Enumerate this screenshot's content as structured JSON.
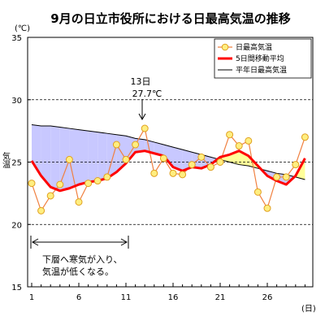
{
  "chart_data": {
    "type": "line",
    "title": "9月の日立市役所における日最高気温の推移",
    "unit_label": "(℃)",
    "ylabel": "気温",
    "xlabel": "(日)",
    "x": [
      1,
      2,
      3,
      4,
      5,
      6,
      7,
      8,
      9,
      10,
      11,
      12,
      13,
      14,
      15,
      16,
      17,
      18,
      19,
      20,
      21,
      22,
      23,
      24,
      25,
      26,
      27,
      28,
      29,
      30
    ],
    "xticks": [
      1,
      6,
      11,
      16,
      21,
      26
    ],
    "ylim": [
      15,
      35
    ],
    "yticks": [
      15,
      20,
      25,
      30,
      35
    ],
    "grid": "dashed at 20, 25, 30",
    "legend_position": "top-right",
    "series": [
      {
        "name": "日最高気温",
        "color": "#f08040",
        "marker_color": "#ffee80",
        "values": [
          23.3,
          21.1,
          22.3,
          23.2,
          25.2,
          21.8,
          23.3,
          23.5,
          23.8,
          26.4,
          25.2,
          26.4,
          27.7,
          24.1,
          25.3,
          24.1,
          24.0,
          24.8,
          25.4,
          24.6,
          25.0,
          27.2,
          26.3,
          26.7,
          22.6,
          21.3,
          23.8,
          23.8,
          24.8,
          27.0
        ]
      },
      {
        "name": "5日間移動平均",
        "color": "#ff0000",
        "values": [
          25.1,
          23.9,
          23.0,
          22.7,
          22.9,
          23.2,
          23.4,
          23.5,
          23.7,
          24.2,
          24.9,
          25.8,
          25.9,
          25.7,
          25.5,
          24.6,
          24.3,
          24.6,
          24.5,
          24.8,
          25.4,
          25.6,
          25.9,
          25.5,
          24.7,
          23.9,
          23.5,
          23.2,
          23.9,
          25.3
        ]
      },
      {
        "name": "平年日最高気温",
        "color": "#000000",
        "values": [
          28.0,
          27.9,
          27.9,
          27.8,
          27.7,
          27.6,
          27.5,
          27.4,
          27.3,
          27.2,
          27.1,
          26.9,
          26.8,
          26.6,
          26.4,
          26.2,
          26.0,
          25.8,
          25.6,
          25.4,
          25.2,
          25.0,
          24.8,
          24.7,
          24.5,
          24.3,
          24.1,
          24.0,
          23.8,
          23.6
        ]
      }
    ],
    "fill_colors": {
      "below_normal": "#c8c8ff",
      "above_normal": "#ffff99"
    },
    "annotations": {
      "peak_day": "13日",
      "peak_value": "27.7℃",
      "note_line1": "下層へ寒気が入り、",
      "note_line2": "気温が低くなる。"
    }
  }
}
